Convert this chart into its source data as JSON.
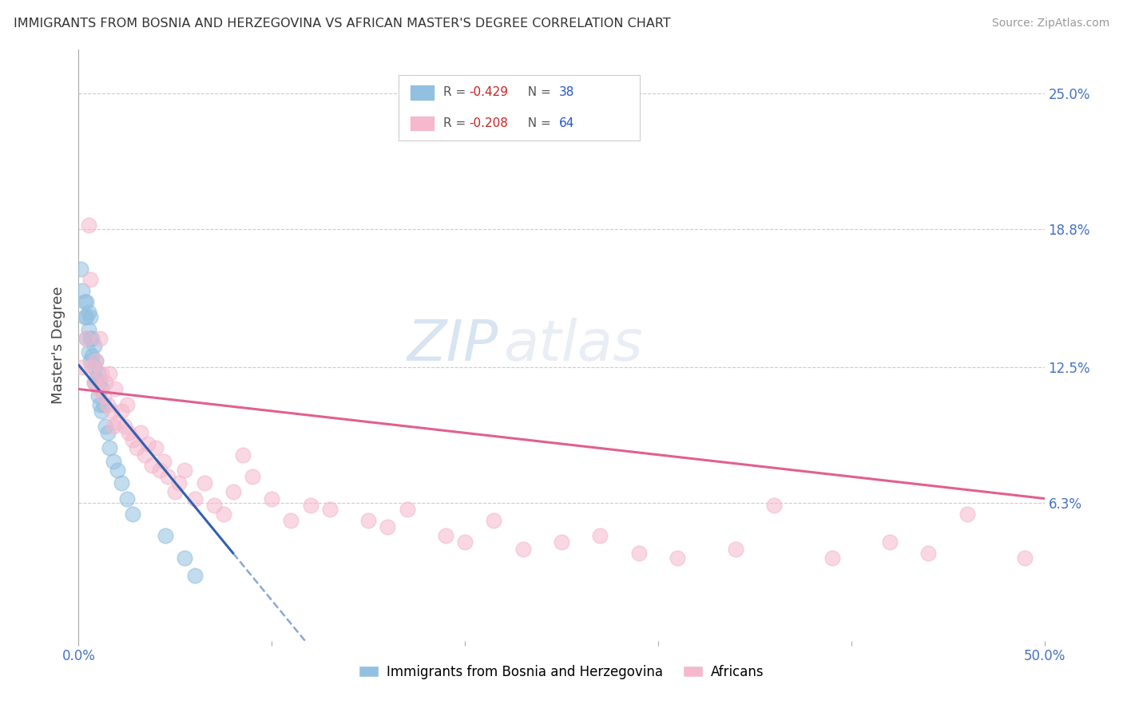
{
  "title": "IMMIGRANTS FROM BOSNIA AND HERZEGOVINA VS AFRICAN MASTER'S DEGREE CORRELATION CHART",
  "source": "Source: ZipAtlas.com",
  "ylabel": "Master's Degree",
  "y_tick_labels": [
    "25.0%",
    "18.8%",
    "12.5%",
    "6.3%"
  ],
  "y_tick_values": [
    0.25,
    0.188,
    0.125,
    0.063
  ],
  "legend1_r": "R = -0.429",
  "legend1_n": "N = 38",
  "legend2_r": "R = -0.208",
  "legend2_n": "N = 64",
  "blue_color": "#92c0e0",
  "pink_color": "#f5b8cc",
  "blue_line_color": "#3060b0",
  "pink_line_color": "#e06090",
  "watermark_zip": "ZIP",
  "watermark_atlas": "atlas",
  "xlim": [
    0.0,
    0.5
  ],
  "ylim": [
    0.0,
    0.27
  ],
  "figsize": [
    14.06,
    8.92
  ],
  "dpi": 100,
  "blue_scatter_x": [
    0.001,
    0.002,
    0.003,
    0.003,
    0.004,
    0.004,
    0.004,
    0.005,
    0.005,
    0.005,
    0.006,
    0.006,
    0.006,
    0.007,
    0.007,
    0.008,
    0.008,
    0.008,
    0.009,
    0.009,
    0.01,
    0.01,
    0.011,
    0.011,
    0.012,
    0.012,
    0.013,
    0.014,
    0.015,
    0.016,
    0.018,
    0.02,
    0.022,
    0.025,
    0.028,
    0.045,
    0.055,
    0.06
  ],
  "blue_scatter_y": [
    0.17,
    0.16,
    0.155,
    0.148,
    0.155,
    0.148,
    0.138,
    0.15,
    0.142,
    0.132,
    0.148,
    0.138,
    0.128,
    0.138,
    0.13,
    0.135,
    0.125,
    0.118,
    0.128,
    0.12,
    0.122,
    0.112,
    0.118,
    0.108,
    0.115,
    0.105,
    0.108,
    0.098,
    0.095,
    0.088,
    0.082,
    0.078,
    0.072,
    0.065,
    0.058,
    0.048,
    0.038,
    0.03
  ],
  "pink_scatter_x": [
    0.002,
    0.004,
    0.005,
    0.006,
    0.007,
    0.008,
    0.009,
    0.01,
    0.011,
    0.012,
    0.013,
    0.014,
    0.015,
    0.016,
    0.017,
    0.018,
    0.019,
    0.02,
    0.022,
    0.024,
    0.025,
    0.026,
    0.028,
    0.03,
    0.032,
    0.034,
    0.036,
    0.038,
    0.04,
    0.042,
    0.044,
    0.046,
    0.05,
    0.052,
    0.055,
    0.06,
    0.065,
    0.07,
    0.075,
    0.08,
    0.085,
    0.09,
    0.1,
    0.11,
    0.12,
    0.13,
    0.15,
    0.16,
    0.17,
    0.19,
    0.2,
    0.215,
    0.23,
    0.25,
    0.27,
    0.29,
    0.31,
    0.34,
    0.36,
    0.39,
    0.42,
    0.44,
    0.46,
    0.49
  ],
  "pink_scatter_y": [
    0.125,
    0.138,
    0.19,
    0.165,
    0.125,
    0.118,
    0.128,
    0.115,
    0.138,
    0.122,
    0.112,
    0.118,
    0.108,
    0.122,
    0.105,
    0.098,
    0.115,
    0.1,
    0.105,
    0.098,
    0.108,
    0.095,
    0.092,
    0.088,
    0.095,
    0.085,
    0.09,
    0.08,
    0.088,
    0.078,
    0.082,
    0.075,
    0.068,
    0.072,
    0.078,
    0.065,
    0.072,
    0.062,
    0.058,
    0.068,
    0.085,
    0.075,
    0.065,
    0.055,
    0.062,
    0.06,
    0.055,
    0.052,
    0.06,
    0.048,
    0.045,
    0.055,
    0.042,
    0.045,
    0.048,
    0.04,
    0.038,
    0.042,
    0.062,
    0.038,
    0.045,
    0.04,
    0.058,
    0.038
  ]
}
